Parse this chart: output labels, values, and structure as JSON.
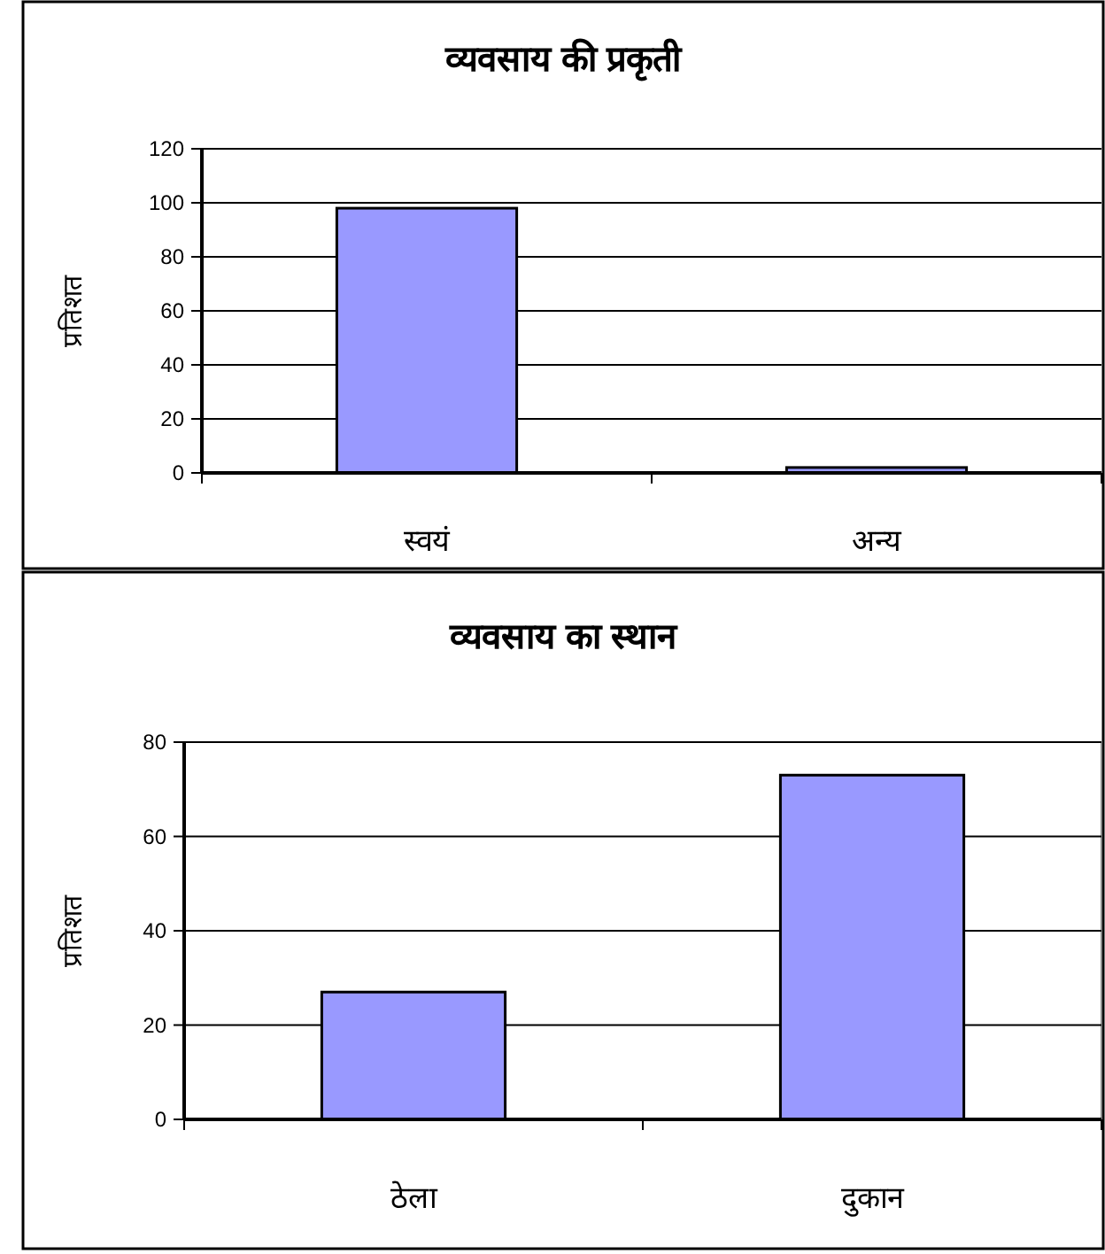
{
  "chart_data": [
    {
      "type": "bar",
      "title": "व्यवसाय की प्रकृती",
      "ylabel": "प्रतिशत",
      "categories": [
        "स्वयं",
        "अन्य"
      ],
      "values": [
        98,
        2
      ],
      "color": "#9999ff",
      "ylim": [
        0,
        120
      ],
      "yticks": [
        0,
        20,
        40,
        60,
        80,
        100,
        120
      ],
      "grid": "y"
    },
    {
      "type": "bar",
      "title": "व्यवसाय का स्थान",
      "ylabel": "प्रतिशत",
      "categories": [
        "ठेला",
        "दुकान"
      ],
      "values": [
        27,
        73
      ],
      "color": "#9999ff",
      "ylim": [
        0,
        80
      ],
      "yticks": [
        0,
        20,
        40,
        60,
        80
      ],
      "grid": "y"
    }
  ]
}
